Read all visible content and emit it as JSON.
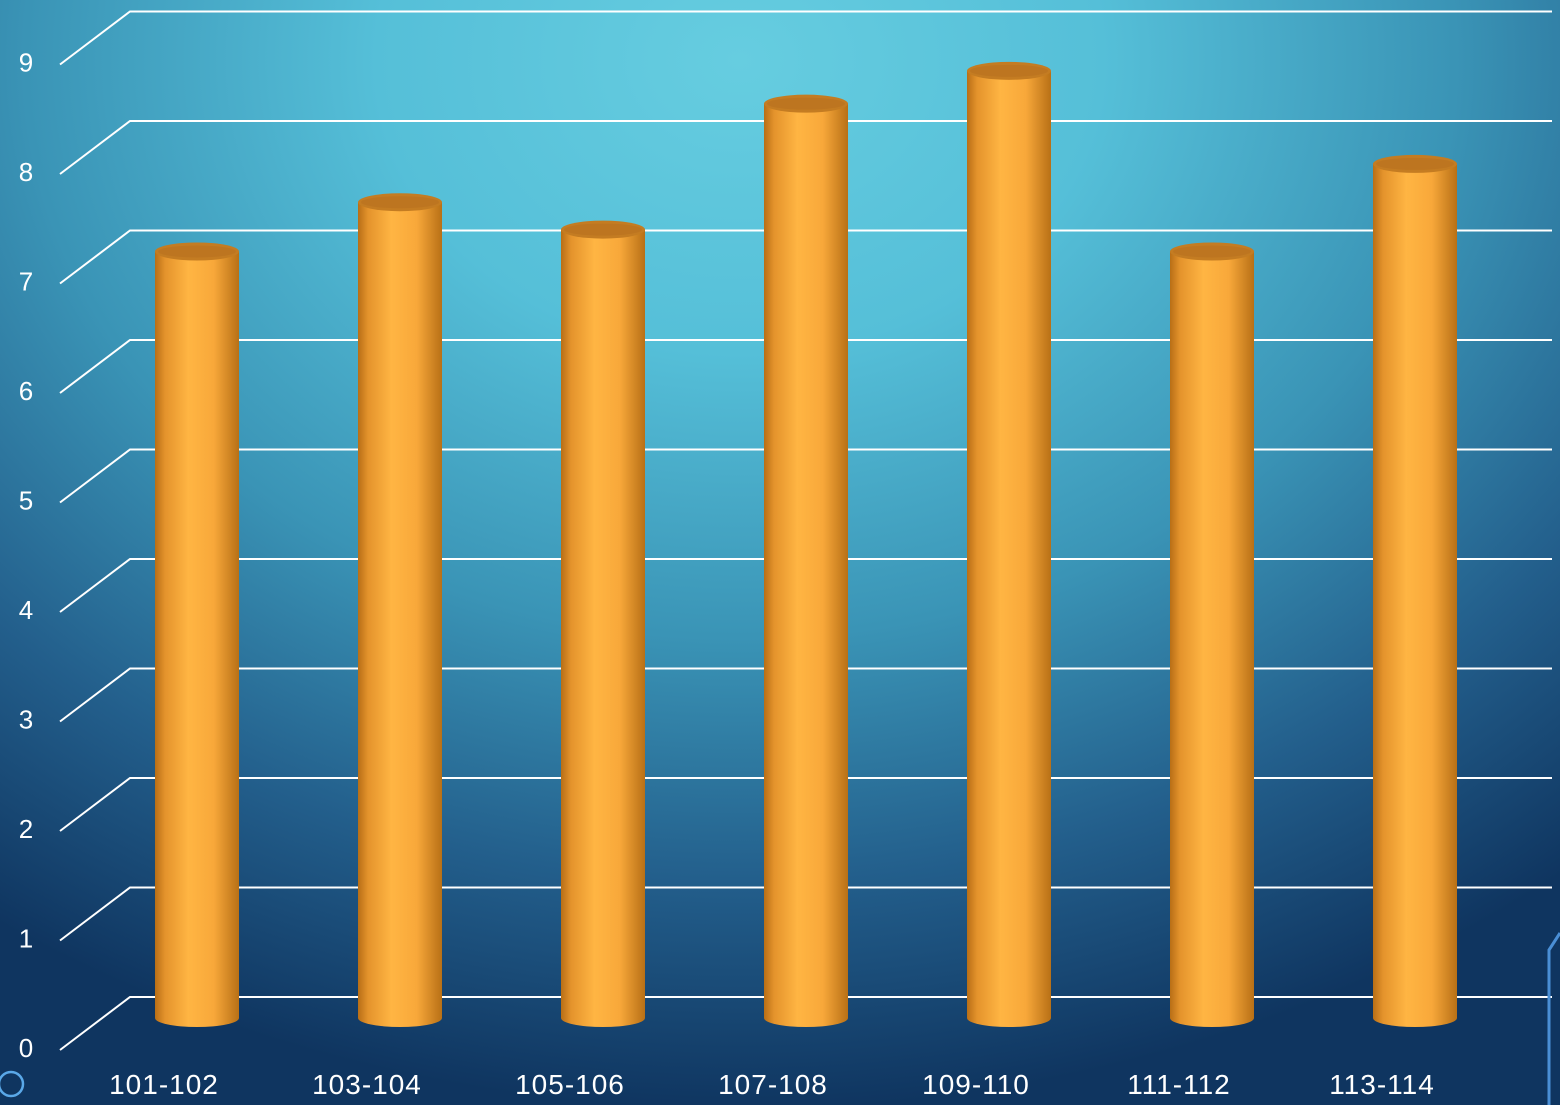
{
  "chart_data": {
    "type": "bar",
    "categories": [
      "101-102",
      "103-104",
      "105-106",
      "107-108",
      "109-110",
      "111-112",
      "113-114"
    ],
    "values": [
      7.0,
      7.45,
      7.2,
      8.35,
      8.65,
      7.0,
      7.8
    ],
    "yticks": [
      "0",
      "1",
      "2",
      "3",
      "4",
      "5",
      "6",
      "7",
      "8",
      "9"
    ],
    "ylim": [
      0,
      9
    ],
    "grid": true,
    "bar_color": "#ffad3b",
    "title": "",
    "xlabel": "",
    "ylabel": ""
  }
}
